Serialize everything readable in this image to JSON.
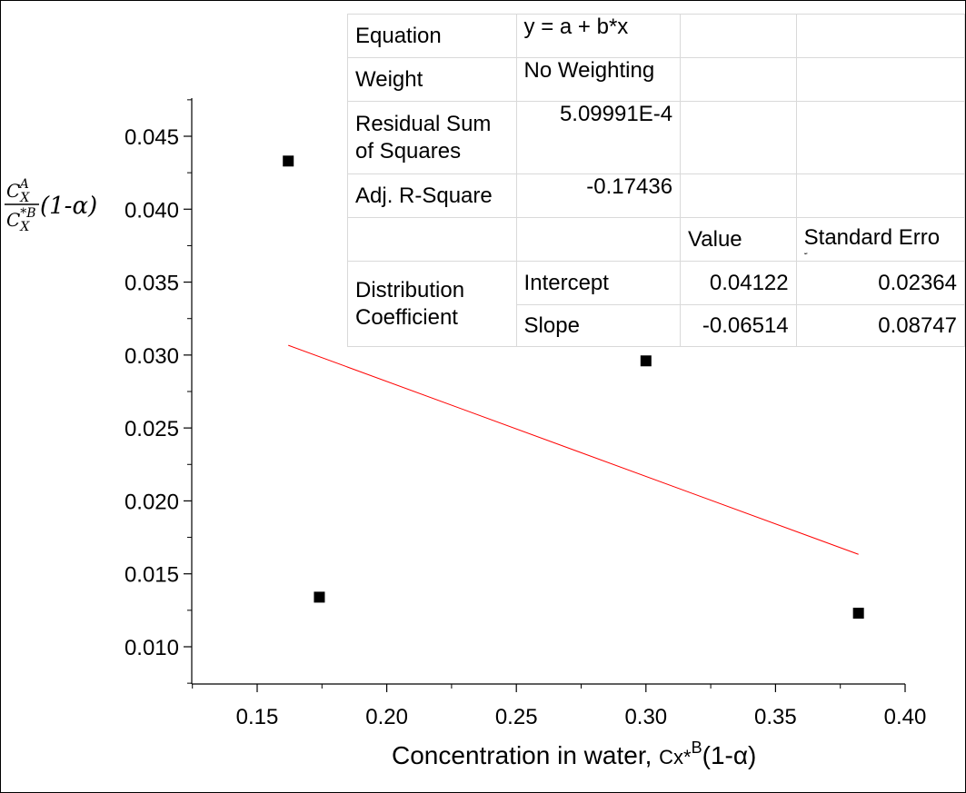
{
  "chart_data": {
    "type": "scatter",
    "title": "",
    "xlabel": "Concentration in water, ",
    "xlabel_symbol": "Cx*",
    "xlabel_superscript": "B",
    "xlabel_suffix": "(1-α)",
    "ylabel_num_base": "C",
    "ylabel_num_sub": "X",
    "ylabel_num_sup": "A",
    "ylabel_den_base": "C",
    "ylabel_den_sub": "X",
    "ylabel_den_sup": "*B",
    "ylabel_suffix": "(1-α)",
    "xlim": [
      0.125,
      0.4
    ],
    "ylim": [
      0.007,
      0.047
    ],
    "x_ticks": [
      0.15,
      0.2,
      0.25,
      0.3,
      0.35,
      0.4
    ],
    "x_tick_labels": [
      "0.15",
      "0.20",
      "0.25",
      "0.30",
      "0.35",
      "0.40"
    ],
    "y_ticks": [
      0.01,
      0.015,
      0.02,
      0.025,
      0.03,
      0.035,
      0.04,
      0.045
    ],
    "y_tick_labels": [
      "0.010",
      "0.015",
      "0.020",
      "0.025",
      "0.030",
      "0.035",
      "0.040",
      "0.045"
    ],
    "points": {
      "x": [
        0.162,
        0.174,
        0.3,
        0.382
      ],
      "y": [
        0.0433,
        0.0134,
        0.0296,
        0.0123
      ],
      "color": "#000000"
    },
    "fit_line": {
      "x": [
        0.162,
        0.382
      ],
      "intercept": 0.04122,
      "slope": -0.06514,
      "color": "#ff0000"
    },
    "grid": false
  },
  "stats_table": {
    "equation_label": "Equation",
    "equation_value": "y = a + b*x",
    "weight_label": "Weight",
    "weight_value": "No Weighting",
    "rss_label": "Residual Sum of Squares",
    "rss_value": "5.09991E-4",
    "adjr2_label": "Adj. R-Square",
    "adjr2_value": "-0.17436",
    "value_header": "Value",
    "stderr_header": "Standard Erro",
    "stderr_header_overflow": "r",
    "param_group_label": "Distribution Coefficient",
    "rows": [
      {
        "name": "Intercept",
        "value": "0.04122",
        "stderr": "0.02364"
      },
      {
        "name": "Slope",
        "value": "-0.06514",
        "stderr": "0.08747"
      }
    ]
  }
}
